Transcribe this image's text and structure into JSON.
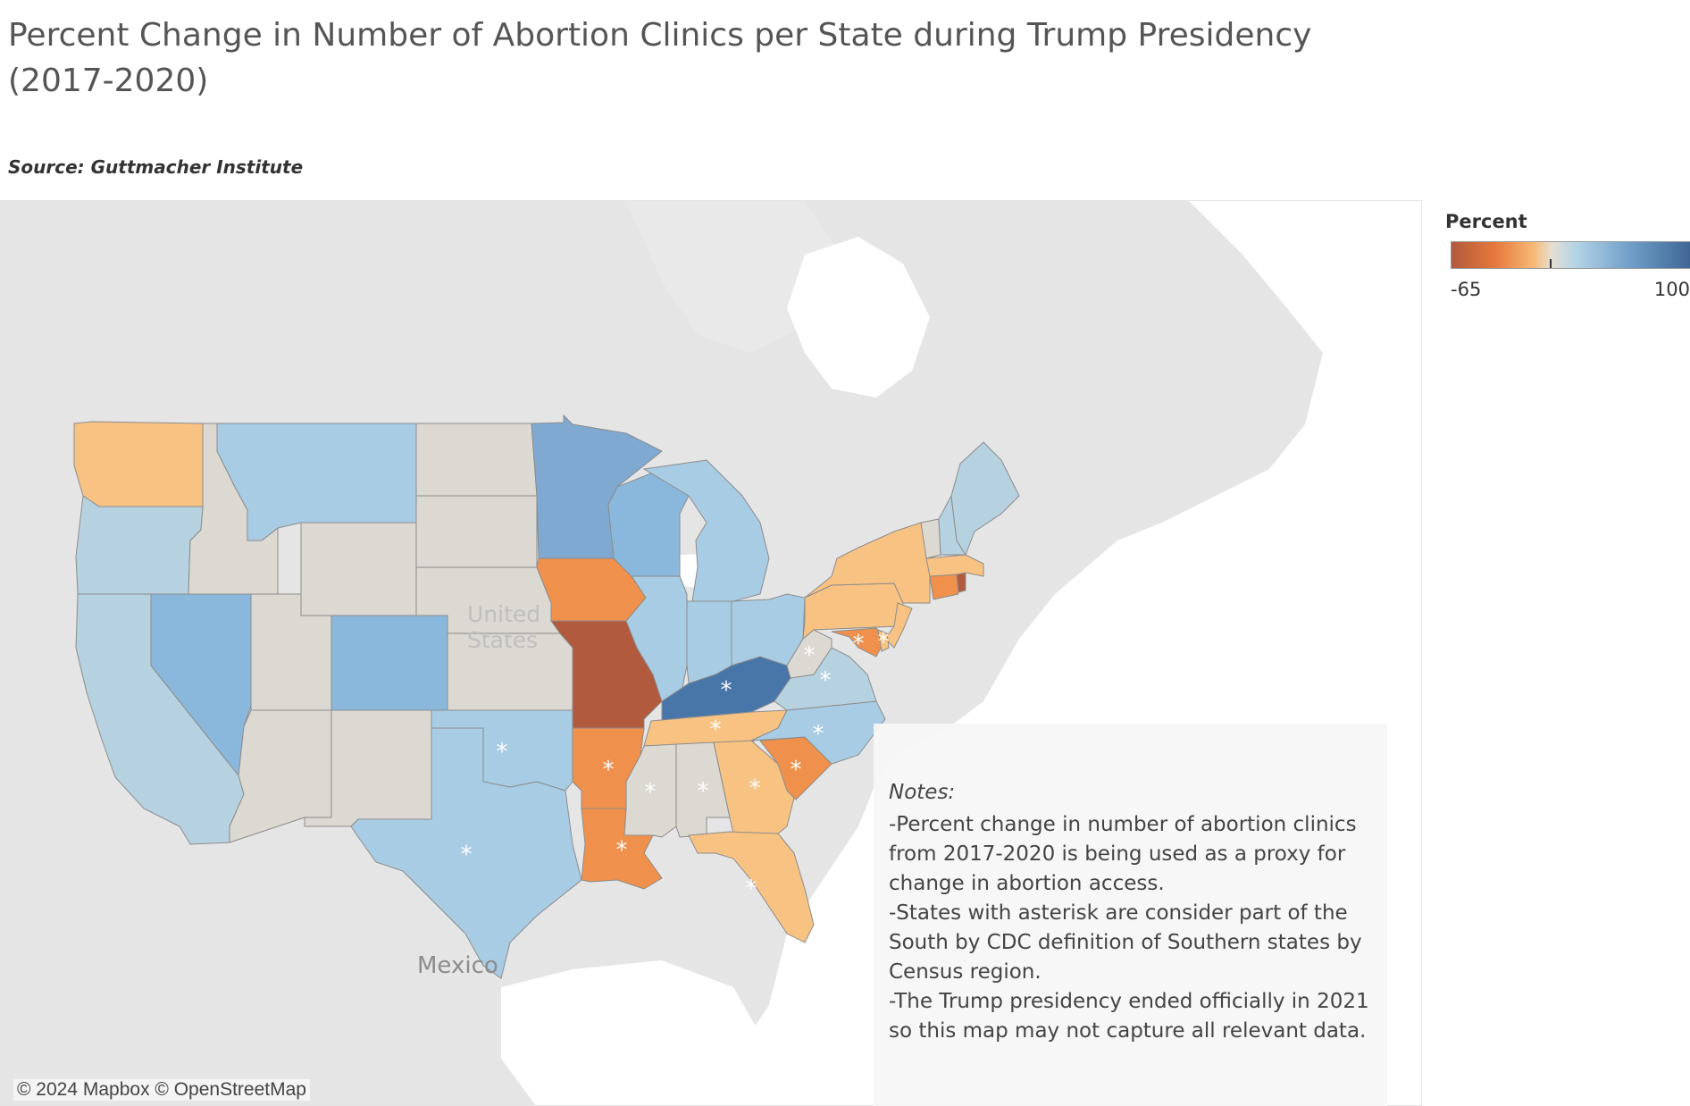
{
  "title": "Percent Change in Number of Abortion Clinics per State during Trump Presidency (2017-2020)",
  "source": "Source: Guttmacher Institute",
  "legend": {
    "title": "Percent",
    "min_label": "-65",
    "max_label": "100",
    "min": -65,
    "max": 100,
    "colors": [
      "#b15a3e",
      "#e5783a",
      "#f7b874",
      "#e6dfd3",
      "#b3d3e6",
      "#6f9ec8",
      "#3e6594"
    ]
  },
  "map_labels": {
    "country_line1": "United",
    "country_line2": "States",
    "mexico": "Mexico"
  },
  "notes": {
    "heading": "Notes:",
    "body": "-Percent change in number of abortion clinics from 2017-2020 is being used as a proxy for change in abortion access.\n-States with asterisk are consider part of the South by CDC definition of Southern states by Census region.\n-The Trump presidency ended officially in 2021 so this map may not capture all relevant data."
  },
  "attribution": "© 2024 Mapbox © OpenStreetMap",
  "asterisk_symbol": "*",
  "colors": {
    "dark_red": "#b15a3e",
    "orange": "#ef914c",
    "light_orange": "#f8c282",
    "neutral": "#dcd8d2",
    "pale_blue": "#b6d1df",
    "light_blue": "#a8cce4",
    "mid_blue": "#8ab8dc",
    "blue": "#7fa9d1",
    "dark_blue": "#4876a8"
  },
  "states": [
    {
      "code": "WA",
      "color": "light_orange",
      "south": false
    },
    {
      "code": "OR",
      "color": "pale_blue",
      "south": false
    },
    {
      "code": "CA",
      "color": "pale_blue",
      "south": false
    },
    {
      "code": "ID",
      "color": "neutral",
      "south": false
    },
    {
      "code": "NV",
      "color": "mid_blue",
      "south": false
    },
    {
      "code": "MT",
      "color": "light_blue",
      "south": false
    },
    {
      "code": "WY",
      "color": "neutral",
      "south": false
    },
    {
      "code": "UT",
      "color": "neutral",
      "south": false
    },
    {
      "code": "AZ",
      "color": "neutral",
      "south": false
    },
    {
      "code": "CO",
      "color": "mid_blue",
      "south": false
    },
    {
      "code": "NM",
      "color": "neutral",
      "south": false
    },
    {
      "code": "ND",
      "color": "neutral",
      "south": false
    },
    {
      "code": "SD",
      "color": "neutral",
      "south": false
    },
    {
      "code": "NE",
      "color": "neutral",
      "south": false
    },
    {
      "code": "KS",
      "color": "neutral",
      "south": false
    },
    {
      "code": "OK",
      "color": "light_blue",
      "south": true
    },
    {
      "code": "TX",
      "color": "light_blue",
      "south": true
    },
    {
      "code": "MN",
      "color": "blue",
      "south": false
    },
    {
      "code": "IA",
      "color": "orange",
      "south": false
    },
    {
      "code": "MO",
      "color": "dark_red",
      "south": false
    },
    {
      "code": "AR",
      "color": "orange",
      "south": true
    },
    {
      "code": "LA",
      "color": "orange",
      "south": true
    },
    {
      "code": "WI",
      "color": "mid_blue",
      "south": false
    },
    {
      "code": "IL",
      "color": "light_blue",
      "south": false
    },
    {
      "code": "MI",
      "color": "light_blue",
      "south": false
    },
    {
      "code": "IN",
      "color": "light_blue",
      "south": false
    },
    {
      "code": "OH",
      "color": "light_blue",
      "south": false
    },
    {
      "code": "KY",
      "color": "dark_blue",
      "south": true
    },
    {
      "code": "TN",
      "color": "light_orange",
      "south": true
    },
    {
      "code": "MS",
      "color": "neutral",
      "south": true
    },
    {
      "code": "AL",
      "color": "neutral",
      "south": true
    },
    {
      "code": "GA",
      "color": "light_orange",
      "south": true
    },
    {
      "code": "FL",
      "color": "light_orange",
      "south": true
    },
    {
      "code": "SC",
      "color": "orange",
      "south": true
    },
    {
      "code": "NC",
      "color": "light_blue",
      "south": true
    },
    {
      "code": "VA",
      "color": "pale_blue",
      "south": true
    },
    {
      "code": "WV",
      "color": "neutral",
      "south": true
    },
    {
      "code": "PA",
      "color": "light_orange",
      "south": false
    },
    {
      "code": "NY",
      "color": "light_orange",
      "south": false
    },
    {
      "code": "NJ",
      "color": "light_orange",
      "south": false
    },
    {
      "code": "MD",
      "color": "orange",
      "south": true
    },
    {
      "code": "DE",
      "color": "light_orange",
      "south": true
    },
    {
      "code": "CT",
      "color": "orange",
      "south": false
    },
    {
      "code": "RI",
      "color": "dark_red",
      "south": false
    },
    {
      "code": "MA",
      "color": "light_orange",
      "south": false
    },
    {
      "code": "VT",
      "color": "neutral",
      "south": false
    },
    {
      "code": "NH",
      "color": "pale_blue",
      "south": false
    },
    {
      "code": "ME",
      "color": "pale_blue",
      "south": false
    }
  ]
}
